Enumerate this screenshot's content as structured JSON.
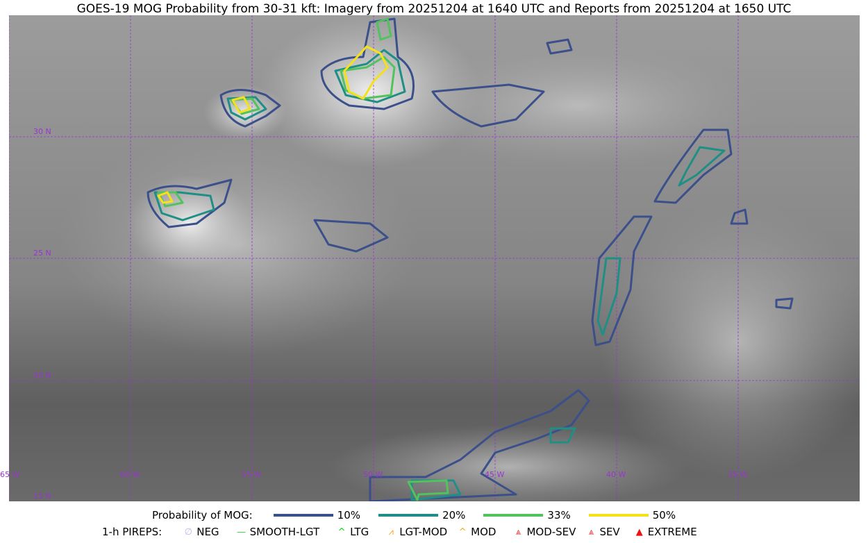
{
  "title": "GOES-19 MOG Probability from 30-31 kft: Imagery from 20251204 at 1640 UTC and Reports from 20251204 at 1650 UTC",
  "map": {
    "grid_color": "#9a35d0",
    "lat_labels": [
      "30 N",
      "25 N",
      "20 N",
      "15 N"
    ],
    "lon_labels": [
      "65 W",
      "60 W",
      "55 W",
      "50 W",
      "45 W",
      "40 W",
      "35 W"
    ]
  },
  "legend": {
    "probability": {
      "label": "Probability of MOG:",
      "items": [
        {
          "label": "10%",
          "color": "#3b4f8a"
        },
        {
          "label": "20%",
          "color": "#1f8f86"
        },
        {
          "label": "33%",
          "color": "#52c25e"
        },
        {
          "label": "50%",
          "color": "#f5e11a"
        }
      ]
    },
    "pireps": {
      "label": "1-h PIREPS:",
      "items": [
        {
          "label": "NEG",
          "icon": "neg-icon",
          "glyph": "∅",
          "color": "#b9b9f0"
        },
        {
          "label": "SMOOTH-LGT",
          "icon": "smooth-lgt-icon",
          "glyph": "—",
          "color": "#33dd33"
        },
        {
          "label": "LTG",
          "icon": "ltg-icon",
          "glyph": "^",
          "color": "#00dd00"
        },
        {
          "label": "LGT-MOD",
          "icon": "lgt-mod-icon",
          "glyph": "⩘",
          "color": "#f5a623"
        },
        {
          "label": "MOD",
          "icon": "mod-icon",
          "glyph": "^",
          "color": "#f5a623"
        },
        {
          "label": "MOD-SEV",
          "icon": "mod-sev-icon",
          "glyph": "⩓",
          "color": "#ee3333"
        },
        {
          "label": "SEV",
          "icon": "sev-icon",
          "glyph": "⩓",
          "color": "#ee3333"
        },
        {
          "label": "EXTREME",
          "icon": "extreme-icon",
          "glyph": "▲",
          "color": "#ee1111"
        }
      ]
    }
  }
}
